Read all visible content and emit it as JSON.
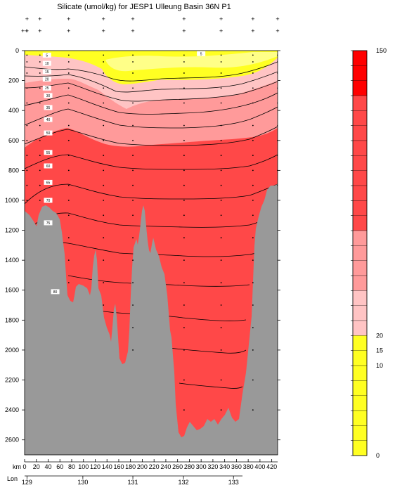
{
  "chart_data": {
    "type": "heatmap",
    "title": "Silicate (umol/kg) for JESP1 Ulleung Basin 36N P1",
    "xlabel": "km",
    "secondary_xlabel": "Lon",
    "station_label_rows": [
      "",
      "++"
    ],
    "y_ticks": [
      0,
      200,
      400,
      600,
      800,
      1000,
      1200,
      1400,
      1600,
      1800,
      2000,
      2200,
      2400,
      2600
    ],
    "ylim": [
      2700,
      0
    ],
    "x_ticks": [
      0,
      20,
      40,
      60,
      80,
      100,
      120,
      140,
      160,
      180,
      200,
      220,
      240,
      260,
      280,
      300,
      320,
      340,
      360,
      380,
      400,
      420
    ],
    "xlim": [
      0,
      430
    ],
    "lon_ticks": [
      {
        "label": "129",
        "km": 4
      },
      {
        "label": "130",
        "km": 99
      },
      {
        "label": "131",
        "km": 184
      },
      {
        "label": "132",
        "km": 270
      },
      {
        "label": "133",
        "km": 355
      }
    ],
    "stations_km": [
      4,
      26,
      75,
      134,
      184,
      271,
      334,
      388,
      430
    ],
    "contour_labels": [
      "5",
      "10",
      "15",
      "20",
      "25",
      "30",
      "35",
      "40",
      "50",
      "55",
      "60",
      "65",
      "70",
      "75",
      "80",
      "5"
    ],
    "colorbar": {
      "min": 0,
      "max": 150,
      "tick_labels": [
        "150",
        "20",
        "15",
        "10",
        "0"
      ],
      "colors": {
        "yellow": "#ffff22",
        "pink_light": "#ffc4c4",
        "pink": "#ff9a9a",
        "red": "#ff4848",
        "red_strong": "#ff0000"
      }
    },
    "bathymetry_color": "#999999"
  }
}
